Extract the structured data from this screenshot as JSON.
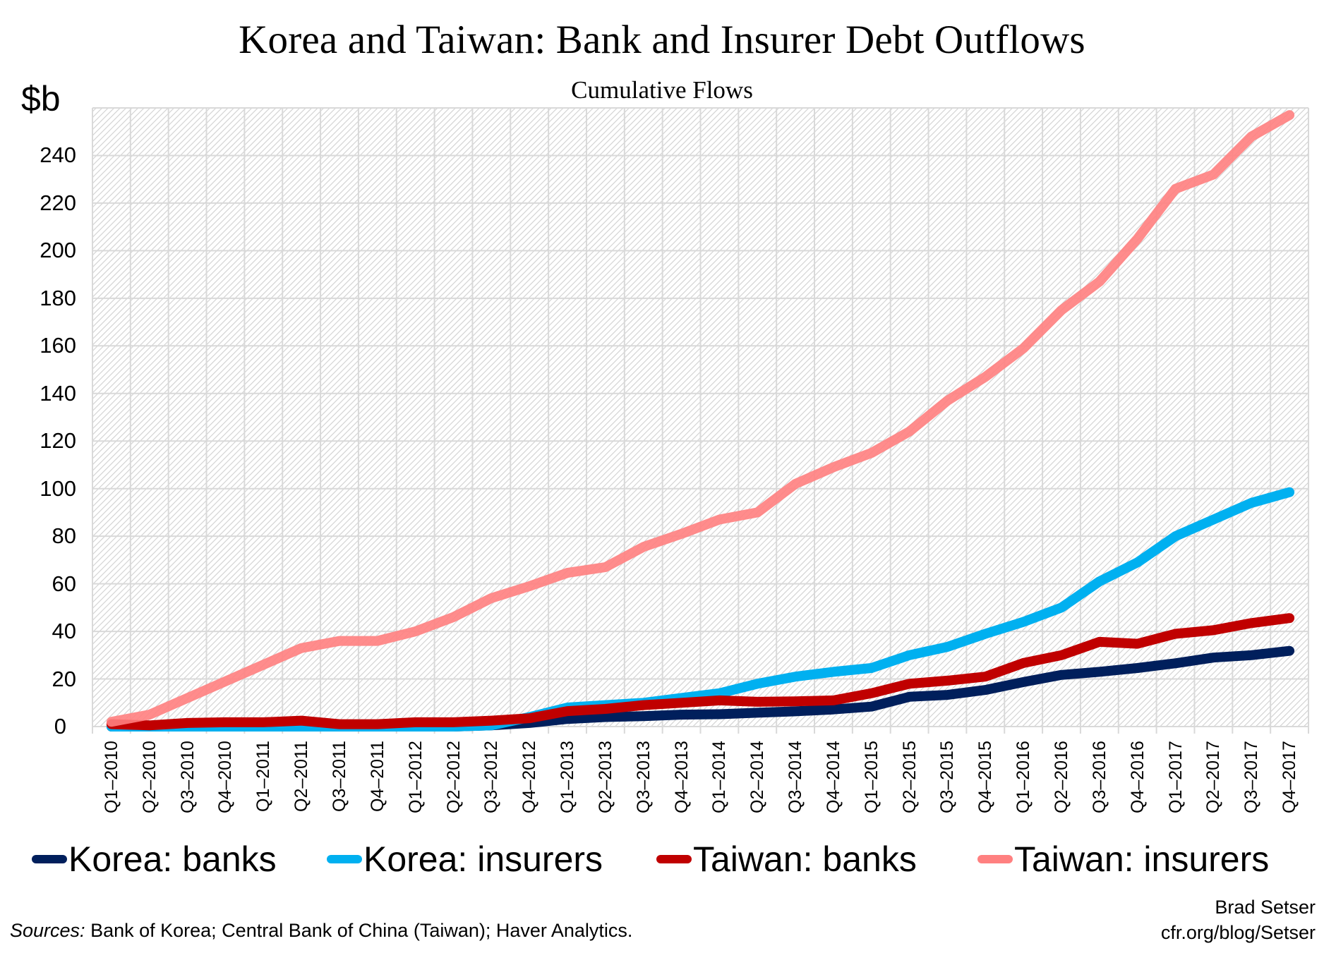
{
  "header": {
    "title": "Korea and Taiwan: Bank and Insurer Debt Outflows",
    "subtitle": "Cumulative Flows",
    "unit_label": "$b"
  },
  "footer": {
    "sources_label": "Sources:",
    "sources_text": " Bank of Korea; Central Bank of China (Taiwan); Haver Analytics.",
    "author": "Brad Setser",
    "url": "cfr.org/blog/Setser"
  },
  "colors": {
    "korea_banks": "#001f5c",
    "korea_insurers": "#00b0f0",
    "taiwan_banks": "#c00000",
    "taiwan_insurers": "#ff8080",
    "grid": "#d9d9d9",
    "hatch": "#d0d0d0"
  },
  "chart_data": {
    "type": "line",
    "title": "Korea and Taiwan: Bank and Insurer Debt Outflows",
    "subtitle": "Cumulative Flows",
    "xlabel": "",
    "ylabel": "$b",
    "ylim": [
      0,
      260
    ],
    "yticks": [
      0,
      20,
      40,
      60,
      80,
      100,
      120,
      140,
      160,
      180,
      200,
      220,
      240
    ],
    "grid": true,
    "legend_position": "bottom",
    "categories": [
      "Q1-2010",
      "Q2-2010",
      "Q3-2010",
      "Q4-2010",
      "Q1-2011",
      "Q2-2011",
      "Q3-2011",
      "Q4-2011",
      "Q1-2012",
      "Q2-2012",
      "Q3-2012",
      "Q4-2012",
      "Q1-2013",
      "Q2-2013",
      "Q3-2013",
      "Q4-2013",
      "Q1-2014",
      "Q2-2014",
      "Q3-2014",
      "Q4-2014",
      "Q1-2015",
      "Q2-2015",
      "Q3-2015",
      "Q4-2015",
      "Q1-2016",
      "Q2-2016",
      "Q3-2016",
      "Q4-2016",
      "Q1-2017",
      "Q2-2017",
      "Q3-2017",
      "Q4-2017"
    ],
    "series": [
      {
        "name": "Korea: banks",
        "color": "#001f5c",
        "values": [
          0,
          0,
          0,
          0,
          0,
          0,
          0,
          0,
          0,
          0,
          0.5,
          1.5,
          3.2,
          4,
          4.4,
          5,
          5.2,
          5.8,
          6.4,
          7.2,
          8.4,
          12.5,
          13.3,
          15.4,
          18.7,
          21.7,
          23,
          24.6,
          26.6,
          29,
          30,
          31.8
        ]
      },
      {
        "name": "Korea: insurers",
        "color": "#00b0f0",
        "values": [
          0,
          0,
          0,
          0,
          0,
          0,
          0,
          0,
          0,
          0,
          0.5,
          4,
          8,
          9,
          10,
          12,
          14,
          18,
          21,
          23,
          24.6,
          30,
          33.5,
          39,
          44,
          50,
          61,
          69,
          80,
          87,
          94,
          98.5
        ]
      },
      {
        "name": "Taiwan: banks",
        "color": "#c00000",
        "values": [
          1,
          0.5,
          1.5,
          1.8,
          1.8,
          2.5,
          1,
          1,
          1.8,
          1.8,
          2.5,
          3.5,
          6.5,
          7.4,
          9,
          10,
          11,
          10.4,
          10.6,
          11,
          14,
          18,
          19.3,
          21,
          26.7,
          30,
          35.6,
          34.8,
          39,
          40.5,
          43.5,
          45.6
        ]
      },
      {
        "name": "Taiwan: insurers",
        "color": "#ff8080",
        "values": [
          2,
          5,
          12,
          19,
          26,
          33,
          36,
          36,
          40,
          46,
          54,
          59,
          64.6,
          67,
          75.5,
          81,
          87,
          90,
          102,
          109,
          115,
          124,
          137,
          147,
          159,
          175,
          187,
          205,
          226,
          232,
          248,
          257
        ]
      }
    ]
  }
}
